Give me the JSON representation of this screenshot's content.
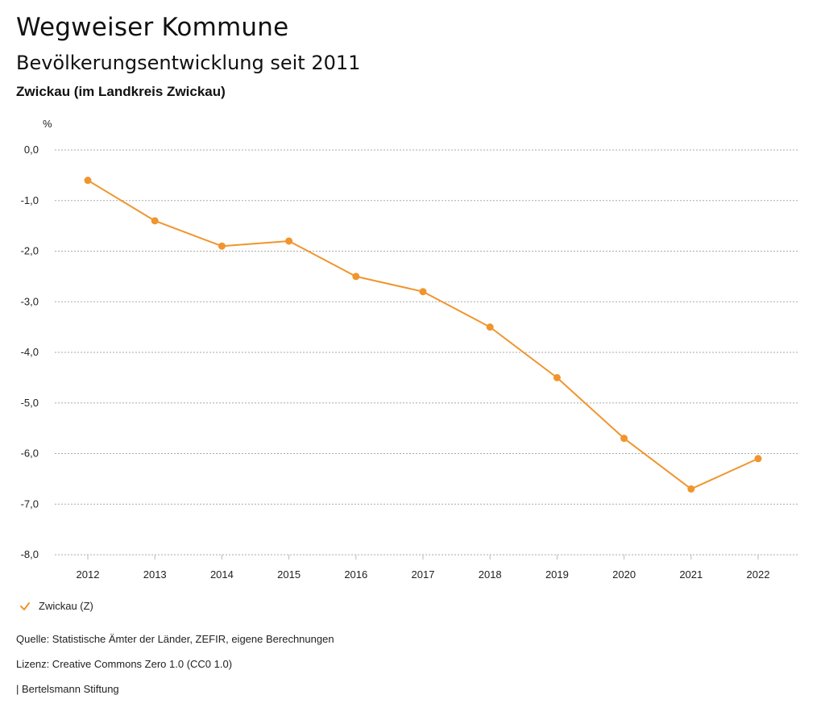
{
  "header": {
    "title": "Wegweiser Kommune",
    "subtitle": "Bevölkerungsentwicklung seit 2011",
    "region": "Zwickau (im Landkreis Zwickau)"
  },
  "legend": {
    "label": "Zwickau (Z)"
  },
  "footer": {
    "source": "Quelle: Statistische Ämter der Länder, ZEFIR, eigene Berechnungen",
    "license": "Lizenz: Creative Commons Zero 1.0 (CC0 1.0)",
    "publisher": "| Bertelsmann Stiftung"
  },
  "colors": {
    "series": "#f0952d",
    "grid": "#aaaaaa"
  },
  "chart_data": {
    "type": "line",
    "title": "Bevölkerungsentwicklung seit 2011",
    "ylabel": "%",
    "xlabel": "",
    "categories": [
      "2012",
      "2013",
      "2014",
      "2015",
      "2016",
      "2017",
      "2018",
      "2019",
      "2020",
      "2021",
      "2022"
    ],
    "series": [
      {
        "name": "Zwickau (Z)",
        "values": [
          -0.6,
          -1.4,
          -1.9,
          -1.8,
          -2.5,
          -2.8,
          -3.5,
          -4.5,
          -5.7,
          -6.7,
          -6.1
        ]
      }
    ],
    "ylim": [
      -8,
      0
    ],
    "yticks": [
      "0,0",
      "-1,0",
      "-2,0",
      "-3,0",
      "-4,0",
      "-5,0",
      "-6,0",
      "-7,0",
      "-8,0"
    ],
    "grid": true,
    "legend": "bottom-left"
  }
}
